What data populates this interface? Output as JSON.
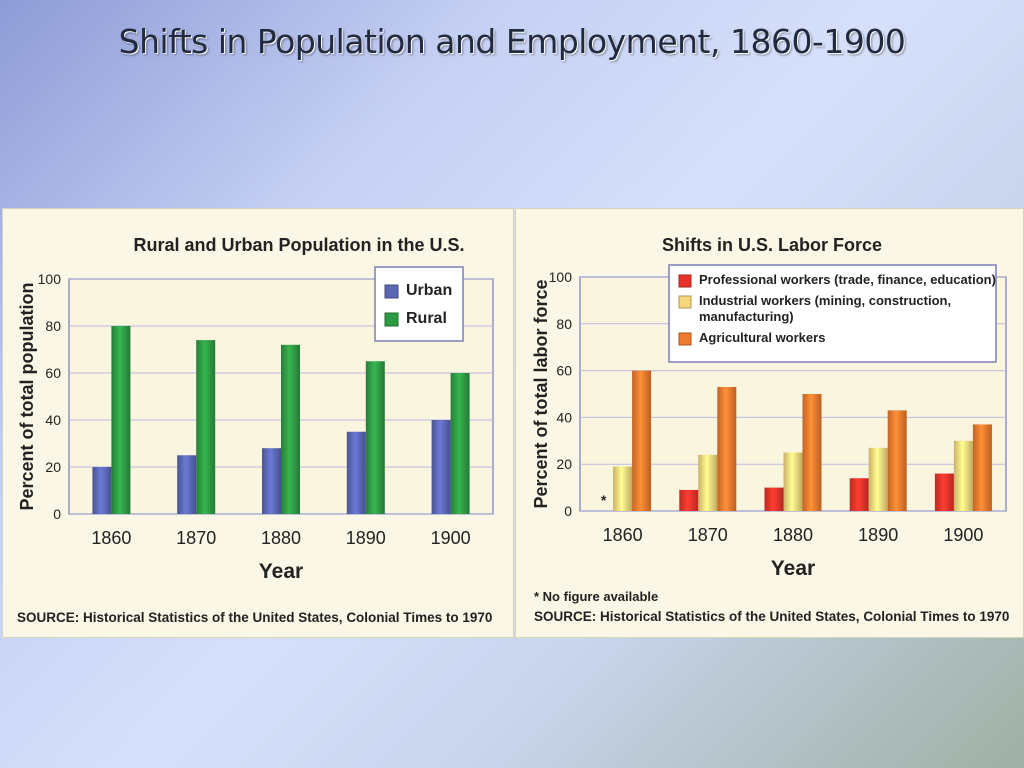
{
  "slide": {
    "title": "Shifts in Population and Employment, 1860-1900"
  },
  "colors": {
    "urban": "#5b67b5",
    "rural": "#2f9a44",
    "professional": "#e8332a",
    "industrial": "#f7d77c",
    "agricultural": "#ee7a2e"
  },
  "chart_data": [
    {
      "type": "bar",
      "title": "Rural and Urban Population in the U.S.",
      "xlabel": "Year",
      "ylabel": "Percent of total population",
      "categories": [
        "1860",
        "1870",
        "1880",
        "1890",
        "1900"
      ],
      "series": [
        {
          "name": "Urban",
          "color": "#5b67b5",
          "values": [
            20,
            25,
            28,
            35,
            40
          ]
        },
        {
          "name": "Rural",
          "color": "#2f9a44",
          "values": [
            80,
            74,
            72,
            65,
            60
          ]
        }
      ],
      "ylim": [
        0,
        100
      ],
      "yticks": [
        0,
        20,
        40,
        60,
        80,
        100
      ],
      "grid": true,
      "legend_position": "top-right",
      "source": "SOURCE: Historical Statistics of the United States, Colonial Times to 1970"
    },
    {
      "type": "bar",
      "title": "Shifts in U.S. Labor Force",
      "xlabel": "Year",
      "ylabel": "Percent of total labor force",
      "categories": [
        "1860",
        "1870",
        "1880",
        "1890",
        "1900"
      ],
      "series": [
        {
          "name": "Professional workers (trade, finance, education)",
          "color": "#e8332a",
          "values": [
            null,
            9,
            10,
            14,
            16
          ]
        },
        {
          "name": "Industrial workers (mining, construction, manufacturing)",
          "color": "#f7d77c",
          "values": [
            19,
            24,
            25,
            27,
            30
          ]
        },
        {
          "name": "Agricultural workers",
          "color": "#ee7a2e",
          "values": [
            60,
            53,
            50,
            43,
            37
          ]
        }
      ],
      "ylim": [
        0,
        100
      ],
      "yticks": [
        0,
        20,
        40,
        60,
        80,
        100
      ],
      "grid": true,
      "legend_position": "top-right",
      "missing_marker": "*",
      "footnote": "* No figure available",
      "source": "SOURCE: Historical Statistics of the United States, Colonial Times to 1970"
    }
  ]
}
